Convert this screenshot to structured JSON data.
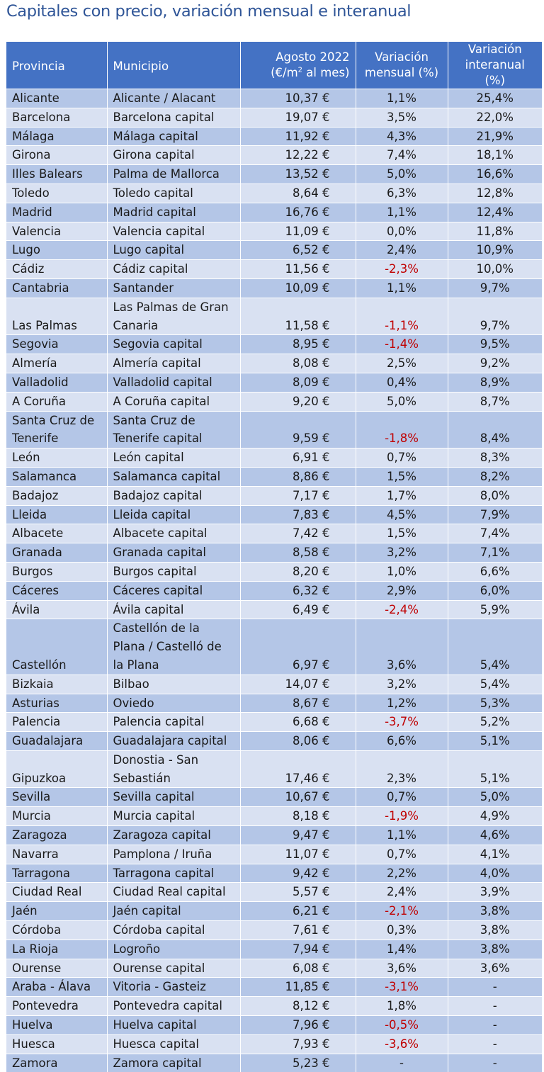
{
  "title": "Capitales con precio, variación mensual e interanual",
  "headers": {
    "provincia": "Provincia",
    "municipio": "Municipio",
    "precio_line1": "Agosto 2022",
    "precio_line2_pre": "(€/m",
    "precio_sup": "2",
    "precio_line2_post": " al mes)",
    "mensual_line1": "Variación",
    "mensual_line2": "mensual (%)",
    "interanual_line1": "Variación",
    "interanual_line2": "interanual (%)"
  },
  "colors": {
    "header_bg": "#4472c4",
    "row_dark": "#b4c6e7",
    "row_light": "#d9e1f2",
    "negative": "#c00000",
    "title": "#2f5597"
  },
  "rows": [
    {
      "provincia": "Alicante",
      "municipio": "Alicante / Alacant",
      "precio": "10,37 €",
      "mensual": "1,1%",
      "interanual": "25,4%"
    },
    {
      "provincia": "Barcelona",
      "municipio": "Barcelona capital",
      "precio": "19,07 €",
      "mensual": "3,5%",
      "interanual": "22,0%"
    },
    {
      "provincia": "Málaga",
      "municipio": "Málaga capital",
      "precio": "11,92 €",
      "mensual": "4,3%",
      "interanual": "21,9%"
    },
    {
      "provincia": "Girona",
      "municipio": "Girona capital",
      "precio": "12,22 €",
      "mensual": "7,4%",
      "interanual": "18,1%"
    },
    {
      "provincia": "Illes Balears",
      "municipio": "Palma de Mallorca",
      "precio": "13,52 €",
      "mensual": "5,0%",
      "interanual": "16,6%"
    },
    {
      "provincia": "Toledo",
      "municipio": "Toledo capital",
      "precio": "8,64 €",
      "mensual": "6,3%",
      "interanual": "12,8%"
    },
    {
      "provincia": "Madrid",
      "municipio": "Madrid capital",
      "precio": "16,76 €",
      "mensual": "1,1%",
      "interanual": "12,4%"
    },
    {
      "provincia": "Valencia",
      "municipio": "Valencia capital",
      "precio": "11,09 €",
      "mensual": "0,0%",
      "interanual": "11,8%"
    },
    {
      "provincia": "Lugo",
      "municipio": "Lugo capital",
      "precio": "6,52 €",
      "mensual": "2,4%",
      "interanual": "10,9%"
    },
    {
      "provincia": "Cádiz",
      "municipio": "Cádiz capital",
      "precio": "11,56 €",
      "mensual": "-2,3%",
      "interanual": "10,0%"
    },
    {
      "provincia": "Cantabria",
      "municipio": "Santander",
      "precio": "10,09 €",
      "mensual": "1,1%",
      "interanual": "9,7%"
    },
    {
      "provincia": "Las Palmas",
      "municipio": "Las Palmas de Gran Canaria",
      "precio": "11,58 €",
      "mensual": "-1,1%",
      "interanual": "9,7%"
    },
    {
      "provincia": "Segovia",
      "municipio": "Segovia capital",
      "precio": "8,95 €",
      "mensual": "-1,4%",
      "interanual": "9,5%"
    },
    {
      "provincia": "Almería",
      "municipio": "Almería capital",
      "precio": "8,08 €",
      "mensual": "2,5%",
      "interanual": "9,2%"
    },
    {
      "provincia": "Valladolid",
      "municipio": "Valladolid capital",
      "precio": "8,09 €",
      "mensual": "0,4%",
      "interanual": "8,9%"
    },
    {
      "provincia": "A Coruña",
      "municipio": "A Coruña capital",
      "precio": "9,20 €",
      "mensual": "5,0%",
      "interanual": "8,7%"
    },
    {
      "provincia": "Santa Cruz de Tenerife",
      "municipio": "Santa Cruz de Tenerife capital",
      "precio": "9,59 €",
      "mensual": "-1,8%",
      "interanual": "8,4%"
    },
    {
      "provincia": "León",
      "municipio": "León capital",
      "precio": "6,91 €",
      "mensual": "0,7%",
      "interanual": "8,3%"
    },
    {
      "provincia": "Salamanca",
      "municipio": "Salamanca capital",
      "precio": "8,86 €",
      "mensual": "1,5%",
      "interanual": "8,2%"
    },
    {
      "provincia": "Badajoz",
      "municipio": "Badajoz capital",
      "precio": "7,17 €",
      "mensual": "1,7%",
      "interanual": "8,0%"
    },
    {
      "provincia": "Lleida",
      "municipio": "Lleida capital",
      "precio": "7,83 €",
      "mensual": "4,5%",
      "interanual": "7,9%"
    },
    {
      "provincia": "Albacete",
      "municipio": "Albacete capital",
      "precio": "7,42 €",
      "mensual": "1,5%",
      "interanual": "7,4%"
    },
    {
      "provincia": "Granada",
      "municipio": "Granada capital",
      "precio": "8,58 €",
      "mensual": "3,2%",
      "interanual": "7,1%"
    },
    {
      "provincia": "Burgos",
      "municipio": "Burgos capital",
      "precio": "8,20 €",
      "mensual": "1,0%",
      "interanual": "6,6%"
    },
    {
      "provincia": "Cáceres",
      "municipio": "Cáceres capital",
      "precio": "6,32 €",
      "mensual": "2,9%",
      "interanual": "6,0%"
    },
    {
      "provincia": "Ávila",
      "municipio": "Ávila capital",
      "precio": "6,49 €",
      "mensual": "-2,4%",
      "interanual": "5,9%"
    },
    {
      "provincia": "Castellón",
      "municipio": "Castellón de la Plana / Castelló de la Plana",
      "precio": "6,97 €",
      "mensual": "3,6%",
      "interanual": "5,4%"
    },
    {
      "provincia": "Bizkaia",
      "municipio": "Bilbao",
      "precio": "14,07 €",
      "mensual": "3,2%",
      "interanual": "5,4%"
    },
    {
      "provincia": "Asturias",
      "municipio": "Oviedo",
      "precio": "8,67 €",
      "mensual": "1,2%",
      "interanual": "5,3%"
    },
    {
      "provincia": "Palencia",
      "municipio": "Palencia capital",
      "precio": "6,68 €",
      "mensual": "-3,7%",
      "interanual": "5,2%"
    },
    {
      "provincia": "Guadalajara",
      "municipio": "Guadalajara capital",
      "precio": "8,06 €",
      "mensual": "6,6%",
      "interanual": "5,1%"
    },
    {
      "provincia": "Gipuzkoa",
      "municipio": "Donostia - San Sebastián",
      "precio": "17,46 €",
      "mensual": "2,3%",
      "interanual": "5,1%"
    },
    {
      "provincia": "Sevilla",
      "municipio": "Sevilla capital",
      "precio": "10,67 €",
      "mensual": "0,7%",
      "interanual": "5,0%"
    },
    {
      "provincia": "Murcia",
      "municipio": "Murcia capital",
      "precio": "8,18 €",
      "mensual": "-1,9%",
      "interanual": "4,9%"
    },
    {
      "provincia": "Zaragoza",
      "municipio": "Zaragoza capital",
      "precio": "9,47 €",
      "mensual": "1,1%",
      "interanual": "4,6%"
    },
    {
      "provincia": "Navarra",
      "municipio": "Pamplona / Iruña",
      "precio": "11,07 €",
      "mensual": "0,7%",
      "interanual": "4,1%"
    },
    {
      "provincia": "Tarragona",
      "municipio": "Tarragona capital",
      "precio": "9,42 €",
      "mensual": "2,2%",
      "interanual": "4,0%"
    },
    {
      "provincia": "Ciudad Real",
      "municipio": "Ciudad Real capital",
      "precio": "5,57 €",
      "mensual": "2,4%",
      "interanual": "3,9%"
    },
    {
      "provincia": "Jaén",
      "municipio": "Jaén capital",
      "precio": "6,21 €",
      "mensual": "-2,1%",
      "interanual": "3,8%"
    },
    {
      "provincia": "Córdoba",
      "municipio": "Córdoba capital",
      "precio": "7,61 €",
      "mensual": "0,3%",
      "interanual": "3,8%"
    },
    {
      "provincia": "La Rioja",
      "municipio": "Logroño",
      "precio": "7,94 €",
      "mensual": "1,4%",
      "interanual": "3,8%"
    },
    {
      "provincia": "Ourense",
      "municipio": "Ourense capital",
      "precio": "6,08 €",
      "mensual": "3,6%",
      "interanual": "3,6%"
    },
    {
      "provincia": "Araba - Álava",
      "municipio": "Vitoria - Gasteiz",
      "precio": "11,85 €",
      "mensual": "-3,1%",
      "interanual": "-"
    },
    {
      "provincia": "Pontevedra",
      "municipio": "Pontevedra capital",
      "precio": "8,12 €",
      "mensual": "1,8%",
      "interanual": "-"
    },
    {
      "provincia": "Huelva",
      "municipio": "Huelva capital",
      "precio": "7,96 €",
      "mensual": "-0,5%",
      "interanual": "-"
    },
    {
      "provincia": "Huesca",
      "municipio": "Huesca capital",
      "precio": "7,93 €",
      "mensual": "-3,6%",
      "interanual": "-"
    },
    {
      "provincia": "Zamora",
      "municipio": "Zamora capital",
      "precio": "5,23 €",
      "mensual": "-",
      "interanual": "-"
    }
  ]
}
